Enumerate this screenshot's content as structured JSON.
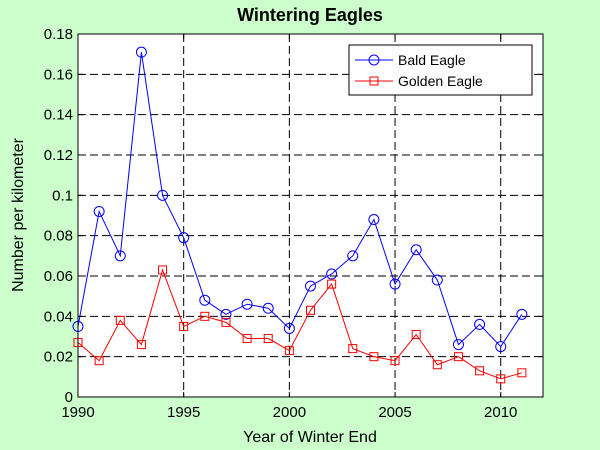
{
  "chart_data": {
    "type": "line",
    "title": "Wintering Eagles",
    "xlabel": "Year of Winter End",
    "ylabel": "Number per kilometer",
    "xlim": [
      1990,
      2012
    ],
    "ylim": [
      0,
      0.18
    ],
    "xticks": [
      1990,
      1995,
      2000,
      2005,
      2010
    ],
    "xtick_labels": [
      "1990",
      "1995",
      "2000",
      "2005",
      "2010"
    ],
    "yticks": [
      0,
      0.02,
      0.04,
      0.06,
      0.08,
      0.1,
      0.12,
      0.14,
      0.16,
      0.18
    ],
    "ytick_labels": [
      "0",
      "0.02",
      "0.04",
      "0.06",
      "0.08",
      "0.1",
      "0.12",
      "0.14",
      "0.16",
      "0.18"
    ],
    "grid": true,
    "legend_position": "top-right",
    "x": [
      1990,
      1991,
      1992,
      1993,
      1994,
      1995,
      1996,
      1997,
      1998,
      1999,
      2000,
      2001,
      2002,
      2003,
      2004,
      2005,
      2006,
      2007,
      2008,
      2009,
      2010,
      2011
    ],
    "series": [
      {
        "name": "Bald Eagle",
        "color": "#0000ff",
        "marker": "circle",
        "values": [
          0.035,
          0.092,
          0.07,
          0.171,
          0.1,
          0.079,
          0.048,
          0.041,
          0.046,
          0.044,
          0.034,
          0.055,
          0.061,
          0.07,
          0.088,
          0.056,
          0.073,
          0.058,
          0.026,
          0.036,
          0.025,
          0.041
        ]
      },
      {
        "name": "Golden Eagle",
        "color": "#ff0000",
        "marker": "square",
        "values": [
          0.027,
          0.018,
          0.038,
          0.026,
          0.063,
          0.035,
          0.04,
          0.037,
          0.029,
          0.029,
          0.023,
          0.043,
          0.056,
          0.024,
          0.02,
          0.018,
          0.031,
          0.016,
          0.02,
          0.013,
          0.009,
          0.012
        ]
      }
    ]
  }
}
